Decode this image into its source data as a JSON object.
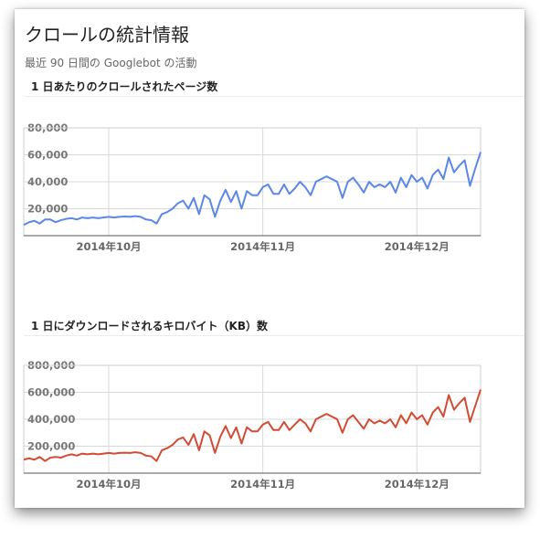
{
  "page": {
    "title": "クロールの統計情報",
    "subtitle": "最近 90 日間の Googlebot の活動"
  },
  "chart_data": [
    {
      "type": "line",
      "title": "1 日あたりのクロールされたページ数",
      "color": "#5b87e8",
      "ylim": [
        0,
        80000
      ],
      "yticks": [
        20000,
        40000,
        60000,
        80000
      ],
      "ytick_labels": [
        "20,000",
        "40,000",
        "60,000",
        "80,000"
      ],
      "xlim": [
        0,
        86
      ],
      "xticks": [
        {
          "x": 16,
          "label": "2014年10月"
        },
        {
          "x": 45,
          "label": "2014年11月"
        },
        {
          "x": 74,
          "label": "2014年12月"
        }
      ],
      "grid": true,
      "values": [
        8000,
        10000,
        11000,
        9000,
        12000,
        12000,
        10000,
        11500,
        12500,
        13000,
        12000,
        13500,
        13000,
        13500,
        13000,
        13500,
        14000,
        13500,
        14000,
        14200,
        14000,
        14500,
        14000,
        12000,
        11500,
        9000,
        16000,
        17500,
        20000,
        24000,
        26000,
        20000,
        28000,
        16000,
        30000,
        27000,
        14000,
        26000,
        34000,
        25000,
        33000,
        20000,
        33000,
        30000,
        30000,
        36000,
        38000,
        31000,
        31000,
        38000,
        31000,
        35000,
        40000,
        36000,
        30000,
        40000,
        42000,
        44000,
        42000,
        40000,
        28000,
        40000,
        43000,
        38000,
        32000,
        40000,
        36000,
        38000,
        36000,
        40000,
        32000,
        43000,
        36000,
        45000,
        40000,
        43000,
        35000,
        45000,
        49000,
        42000,
        58000,
        47000,
        52000,
        56000,
        37000,
        50000,
        62000
      ]
    },
    {
      "type": "line",
      "title": "1 日にダウンロードされるキロバイト（KB）数",
      "color": "#d24b33",
      "ylim": [
        0,
        800000
      ],
      "yticks": [
        200000,
        400000,
        600000,
        800000
      ],
      "ytick_labels": [
        "200,000",
        "400,000",
        "600,000",
        "800,000"
      ],
      "xlim": [
        0,
        86
      ],
      "xticks": [
        {
          "x": 16,
          "label": "2014年10月"
        },
        {
          "x": 45,
          "label": "2014年11月"
        },
        {
          "x": 74,
          "label": "2014年12月"
        }
      ],
      "grid": true,
      "values": [
        100000,
        110000,
        100000,
        120000,
        90000,
        115000,
        120000,
        115000,
        130000,
        140000,
        130000,
        145000,
        140000,
        145000,
        140000,
        145000,
        150000,
        145000,
        150000,
        152000,
        150000,
        155000,
        150000,
        130000,
        125000,
        90000,
        170000,
        185000,
        210000,
        250000,
        265000,
        210000,
        290000,
        170000,
        310000,
        280000,
        150000,
        270000,
        350000,
        260000,
        340000,
        220000,
        340000,
        310000,
        310000,
        360000,
        380000,
        320000,
        320000,
        380000,
        320000,
        360000,
        400000,
        370000,
        310000,
        400000,
        420000,
        440000,
        420000,
        400000,
        300000,
        400000,
        430000,
        380000,
        330000,
        400000,
        370000,
        390000,
        370000,
        400000,
        340000,
        430000,
        370000,
        450000,
        400000,
        430000,
        360000,
        450000,
        490000,
        420000,
        580000,
        470000,
        520000,
        560000,
        380000,
        500000,
        620000
      ]
    }
  ]
}
